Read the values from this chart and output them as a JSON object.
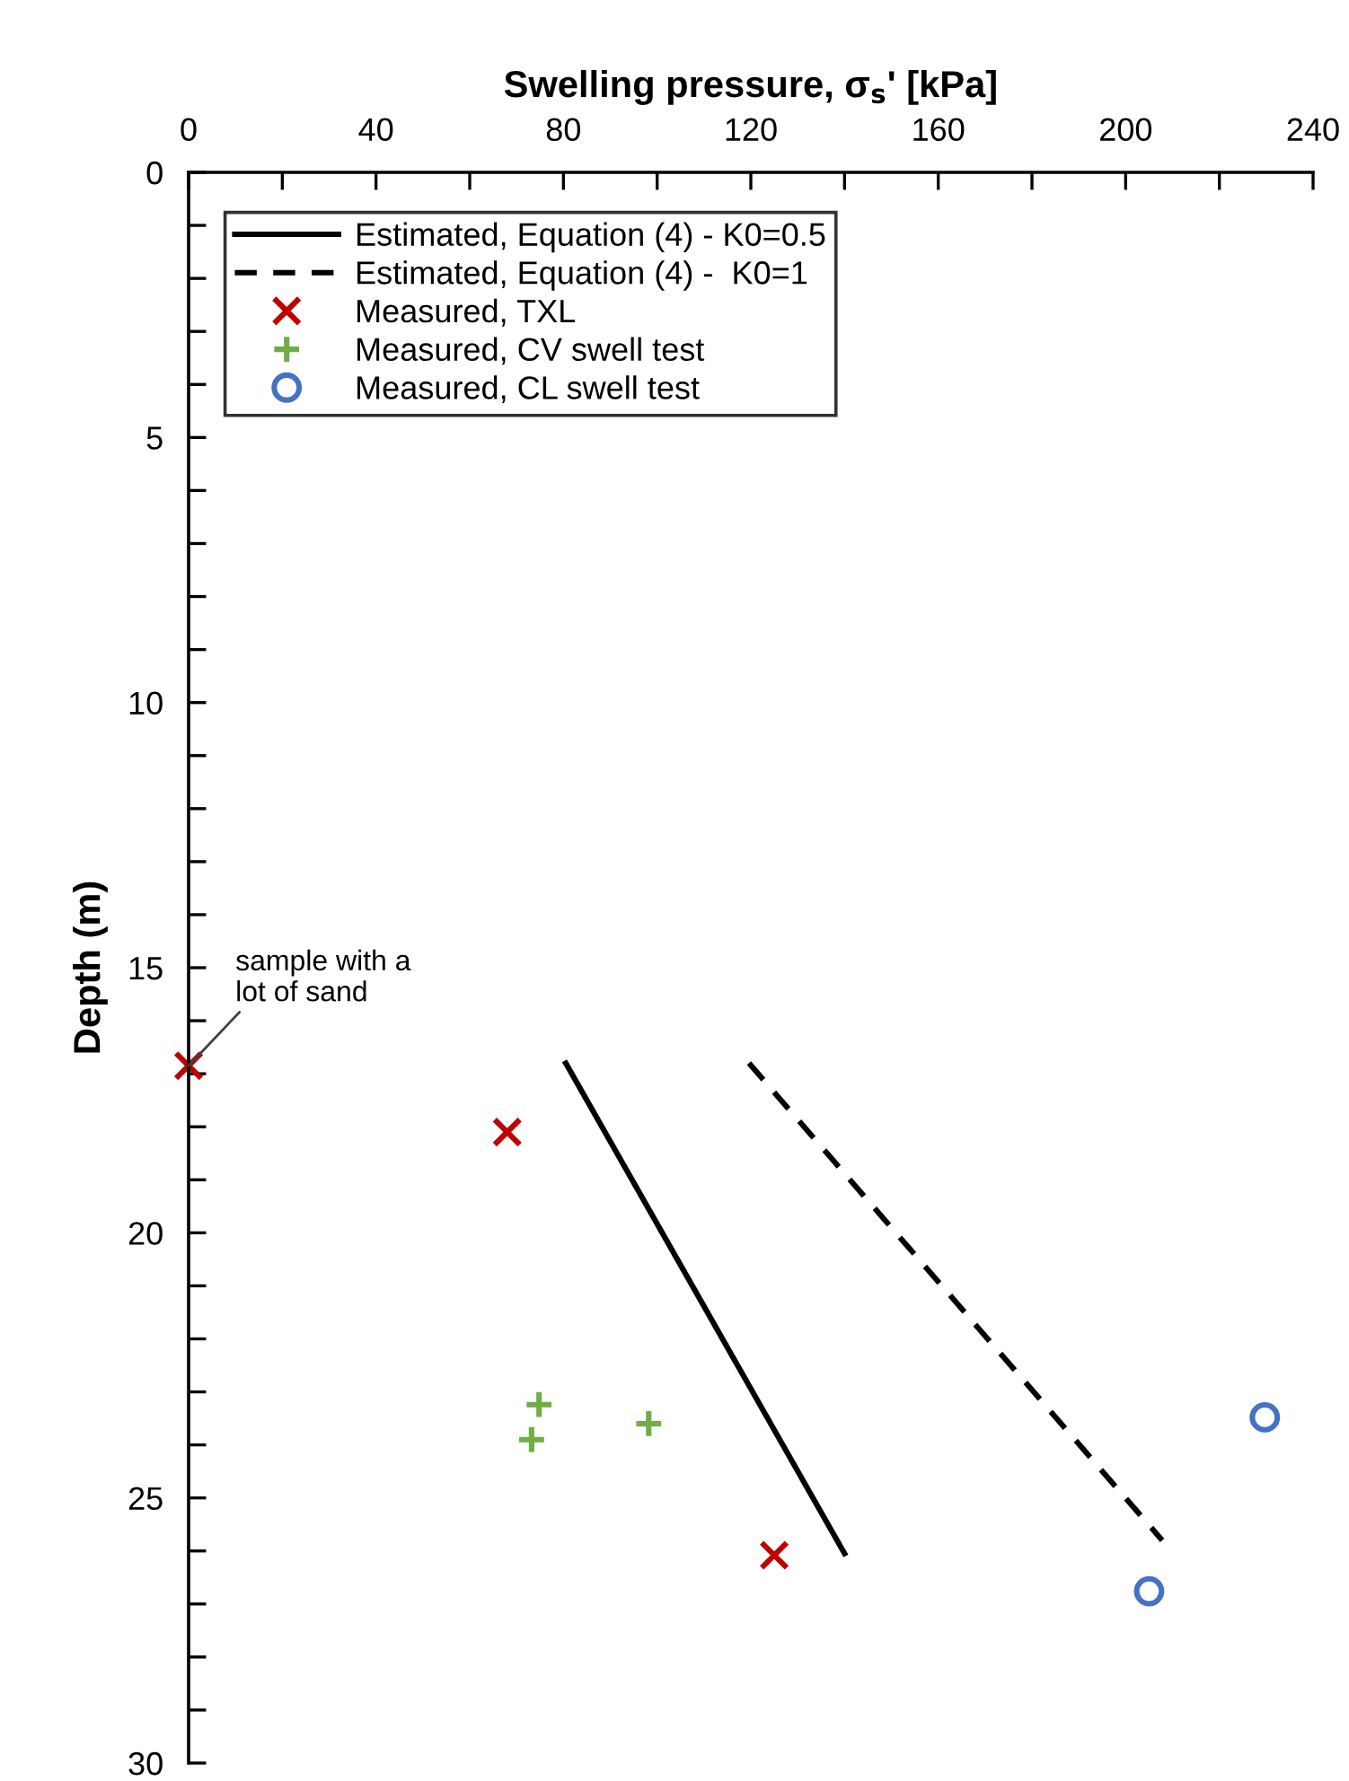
{
  "chart_data": {
    "type": "scatter",
    "xlabel": "Swelling pressure, σ$_{s}$' [kPa]",
    "ylabel": "Depth (m)",
    "xlim": [
      0,
      240
    ],
    "ylim": [
      30,
      0
    ],
    "xticks": [
      0,
      {
        "value": 20,
        "label": null
      },
      40,
      {
        "value": 60,
        "label": null
      },
      80,
      {
        "value": 100,
        "label": null
      },
      120,
      {
        "value": 140,
        "label": null
      },
      160,
      {
        "value": 180,
        "label": null
      },
      200,
      {
        "value": 220,
        "label": null
      },
      240
    ],
    "yticks": [
      0,
      {
        "value": 1,
        "label": null
      },
      {
        "value": 2,
        "label": null
      },
      {
        "value": 3,
        "label": null
      },
      {
        "value": 4,
        "label": null
      },
      5,
      {
        "value": 6,
        "label": null
      },
      {
        "value": 7,
        "label": null
      },
      {
        "value": 8,
        "label": null
      },
      {
        "value": 9,
        "label": null
      },
      10,
      {
        "value": 11,
        "label": null
      },
      {
        "value": 12,
        "label": null
      },
      {
        "value": 13,
        "label": null
      },
      {
        "value": 14,
        "label": null
      },
      15,
      {
        "value": 16,
        "label": null
      },
      {
        "value": 17,
        "label": null
      },
      {
        "value": 18,
        "label": null
      },
      {
        "value": 19,
        "label": null
      },
      20,
      {
        "value": 21,
        "label": null
      },
      {
        "value": 22,
        "label": null
      },
      {
        "value": 23,
        "label": null
      },
      {
        "value": 24,
        "label": null
      },
      25,
      {
        "value": 26,
        "label": null
      },
      {
        "value": 27,
        "label": null
      },
      {
        "value": 28,
        "label": null
      },
      {
        "value": 29,
        "label": null
      },
      30
    ],
    "grid": false,
    "legend": "top",
    "series": [
      {
        "name": "Estimated, Equation (4) - K0=0.5",
        "type": "line",
        "line_style": "solid",
        "marker": "none",
        "color": "#000000",
        "x": [
          80.5,
          140
        ],
        "values": [
          16.8,
          26.05
        ]
      },
      {
        "name": "Estimated, Equation (4) -  K0=1",
        "type": "line",
        "line_style": "dashed",
        "marker": "none",
        "color": "#000000",
        "x": [
          119.6,
          207.8
        ],
        "values": [
          16.8,
          25.8
        ]
      },
      {
        "name": "Measured, TXL",
        "marker": "cross",
        "color": "#c00000",
        "x": [
          0,
          68,
          125
        ],
        "values": [
          16.85,
          18.1,
          26.08
        ]
      },
      {
        "name": "Measured, CV swell test",
        "marker": "plus",
        "color": "#70ad47",
        "x": [
          74.8,
          73.2,
          98.2
        ],
        "values": [
          23.24,
          23.9,
          23.6
        ]
      },
      {
        "name": "Measured, CL swell test",
        "marker": "circle",
        "color": "#4472c4",
        "x": [
          229.7,
          205
        ],
        "values": [
          23.48,
          26.76
        ]
      }
    ],
    "annotations": [
      {
        "text": "sample with a\nlot of sand",
        "x": 0,
        "y": 16.85
      }
    ]
  }
}
